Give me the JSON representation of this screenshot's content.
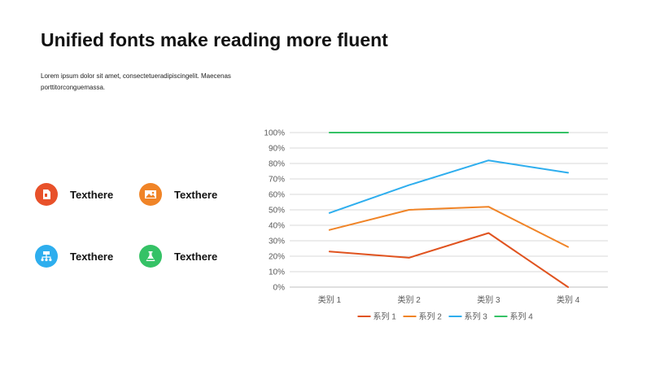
{
  "slide": {
    "title": "Unified fonts make reading more fluent",
    "subtitle": "Lorem ipsum  dolor sit amet, consectetueradipiscingelit.  Maecenas porttitorconguemassa."
  },
  "features": [
    {
      "label": "Texthere",
      "icon": "document-icon",
      "color": "#E8512A"
    },
    {
      "label": "Texthere",
      "icon": "image-icon",
      "color": "#F08427"
    },
    {
      "label": "Texthere",
      "icon": "hierarchy-icon",
      "color": "#2EAEEE"
    },
    {
      "label": "Texthere",
      "icon": "flask-icon",
      "color": "#35C266"
    }
  ],
  "chart_data": {
    "type": "line",
    "categories": [
      "类别 1",
      "类别 2",
      "类别 3",
      "类别 4"
    ],
    "y_ticks": [
      "0%",
      "10%",
      "20%",
      "30%",
      "40%",
      "50%",
      "60%",
      "70%",
      "80%",
      "90%",
      "100%"
    ],
    "ylim": [
      0,
      100
    ],
    "grid": true,
    "legend": "bottom",
    "series": [
      {
        "name": "系列 1",
        "color": "#E0531F",
        "values": [
          23,
          19,
          35,
          0
        ]
      },
      {
        "name": "系列 2",
        "color": "#F08427",
        "values": [
          37,
          50,
          52,
          26
        ]
      },
      {
        "name": "系列 3",
        "color": "#2EAEEE",
        "values": [
          48,
          66,
          82,
          74
        ]
      },
      {
        "name": "系列 4",
        "color": "#35C266",
        "values": [
          100,
          100,
          100,
          100
        ]
      }
    ]
  }
}
